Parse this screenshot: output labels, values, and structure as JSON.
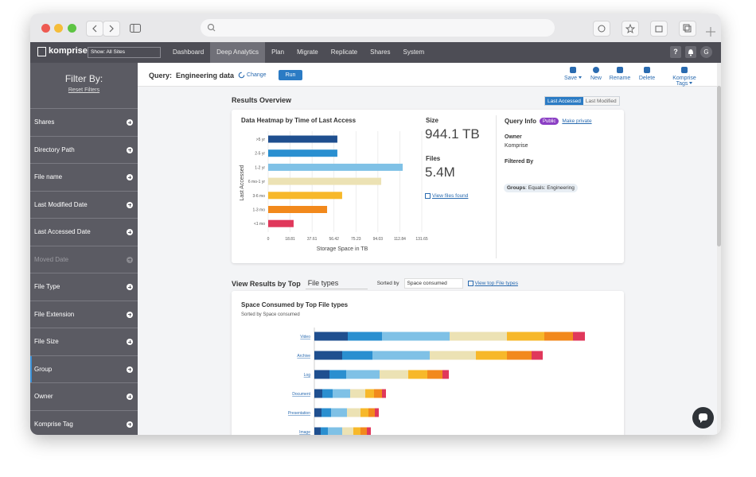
{
  "nav": {
    "logo": "komprise",
    "site_select": "Show: All Sites",
    "tabs": [
      "Dashboard",
      "Deep Analytics",
      "Plan",
      "Migrate",
      "Replicate",
      "Shares",
      "System"
    ],
    "active_tab": 1,
    "help": "?",
    "avatar": "G"
  },
  "sidebar": {
    "title": "Filter By:",
    "reset": "Reset Filters",
    "filters": [
      "Shares",
      "Directory Path",
      "File name",
      "Last Modified Date",
      "Last Accessed Date",
      "Moved Date",
      "File Type",
      "File Extension",
      "File Size",
      "Group",
      "Owner",
      "Komprise Tag"
    ],
    "disabled": [
      5
    ],
    "highlighted": 9
  },
  "query": {
    "label": "Query:",
    "name": "Engineering data",
    "change": "Change",
    "run": "Run",
    "actions": [
      "Save",
      "New",
      "Rename",
      "Delete",
      "Komprise Tags"
    ],
    "dropdown_actions": [
      0,
      4
    ]
  },
  "overview": {
    "title": "Results Overview",
    "toggle": [
      "Last Accessed",
      "Last Modified"
    ],
    "toggle_active": 0,
    "size_label": "Size",
    "size": "944.1 TB",
    "files_label": "Files",
    "files": "5.4M",
    "view_files": "View files found",
    "query_info": "Query Info",
    "badge": "Public",
    "make_private": "Make private",
    "owner_label": "Owner",
    "owner": "Komprise",
    "filtered_label": "Filtered By",
    "chip_key": "Groups",
    "chip_rest": ": Equals: Engineering"
  },
  "view": {
    "label": "View Results by Top",
    "select": "File types",
    "sorted_by": "Sorted by",
    "sort_select": "Space consumed",
    "link": "View top File types"
  },
  "chart_data": [
    {
      "type": "bar",
      "orientation": "horizontal",
      "title": "Data Heatmap by Time of Last Access",
      "xlabel": "Storage Space in TB",
      "ylabel": "Last Accessed",
      "categories": [
        ">5 yr",
        "2-5 yr",
        "1-2 yr",
        "6 mo-1 yr",
        "3-6 mo",
        "1-3 mo",
        "<1 mo"
      ],
      "values": [
        59.3,
        59.3,
        115.3,
        96.9,
        63.4,
        50.5,
        21.8
      ],
      "colors": [
        "#1f4f8f",
        "#2a8fd0",
        "#7fc1e6",
        "#ece2b4",
        "#f7b82a",
        "#f2891c",
        "#e0385b"
      ],
      "xlim": [
        0,
        131.65
      ],
      "xticks": [
        0,
        18.81,
        37.61,
        56.42,
        75.23,
        94.03,
        112.84,
        131.65
      ],
      "grid": true
    },
    {
      "type": "stacked_bar",
      "orientation": "horizontal",
      "title": "Space Consumed by Top File types",
      "subtitle": "Sorted by Space consumed",
      "categories": [
        "Video",
        "Archive",
        "Log",
        "Document",
        "Presentation",
        "Image"
      ],
      "series": [
        {
          "color": "#1f4f8f",
          "values": [
            10.5,
            8.75,
            4.75,
            2.5,
            2.25,
            2
          ]
        },
        {
          "color": "#2a8fd0",
          "values": [
            10.75,
            9.5,
            5.25,
            3.25,
            3,
            2.25
          ]
        },
        {
          "color": "#7fc1e6",
          "values": [
            21.25,
            18,
            10.5,
            5.5,
            5,
            4.5
          ]
        },
        {
          "color": "#ece2b4",
          "values": [
            18,
            14.5,
            9,
            4.75,
            4.25,
            3.5
          ]
        },
        {
          "color": "#f7b82a",
          "values": [
            11.75,
            9.75,
            6,
            2.75,
            2.5,
            2.25
          ]
        },
        {
          "color": "#f2891c",
          "values": [
            9,
            7.75,
            4.75,
            2.5,
            2,
            2
          ]
        },
        {
          "color": "#e0385b",
          "values": [
            3.75,
            3.5,
            2,
            1.25,
            1.25,
            1.25
          ]
        }
      ],
      "xlim": [
        0,
        95
      ]
    }
  ]
}
